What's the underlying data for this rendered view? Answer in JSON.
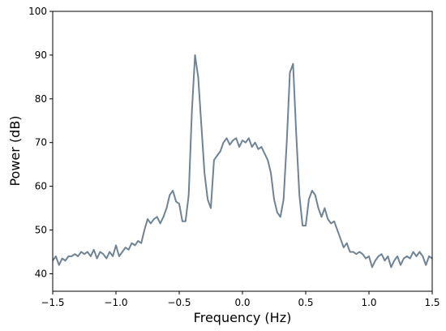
{
  "chart_data": {
    "type": "line",
    "xlabel": "Frequency (Hz)",
    "ylabel": "Power (dB)",
    "color": "#6f8397",
    "xlim": [
      -1.5,
      1.5
    ],
    "ylim": [
      36,
      100
    ],
    "xticks": [
      {
        "value": -1.5,
        "label": "−1.5"
      },
      {
        "value": -1,
        "label": "−1.0"
      },
      {
        "value": -0.5,
        "label": "−0.5"
      },
      {
        "value": 0,
        "label": "0.0"
      },
      0.5,
      {
        "value": 1,
        "label": "1.0"
      },
      1.5
    ],
    "yticks": [
      40,
      50,
      60,
      70,
      80,
      90,
      100
    ],
    "x": [
      -1.5,
      -1.475,
      -1.45,
      -1.425,
      -1.4,
      -1.375,
      -1.35,
      -1.325,
      -1.3,
      -1.275,
      -1.25,
      -1.225,
      -1.2,
      -1.175,
      -1.15,
      -1.125,
      -1.1,
      -1.075,
      -1.05,
      -1.025,
      -1.0,
      -0.975,
      -0.95,
      -0.925,
      -0.9,
      -0.875,
      -0.85,
      -0.825,
      -0.8,
      -0.775,
      -0.75,
      -0.725,
      -0.7,
      -0.675,
      -0.65,
      -0.625,
      -0.6,
      -0.575,
      -0.55,
      -0.525,
      -0.5,
      -0.475,
      -0.45,
      -0.425,
      -0.4,
      -0.375,
      -0.35,
      -0.325,
      -0.3,
      -0.275,
      -0.25,
      -0.225,
      -0.2,
      -0.175,
      -0.15,
      -0.125,
      -0.1,
      -0.075,
      -0.05,
      -0.025,
      0,
      0.025,
      0.05,
      0.075,
      0.1,
      0.125,
      0.15,
      0.175,
      0.2,
      0.225,
      0.25,
      0.275,
      0.3,
      0.325,
      0.35,
      0.375,
      0.4,
      0.425,
      0.45,
      0.475,
      0.5,
      0.525,
      0.55,
      0.575,
      0.6,
      0.625,
      0.65,
      0.675,
      0.7,
      0.725,
      0.75,
      0.775,
      0.8,
      0.825,
      0.85,
      0.875,
      0.9,
      0.925,
      0.95,
      0.975,
      1.0,
      1.025,
      1.05,
      1.075,
      1.1,
      1.125,
      1.15,
      1.175,
      1.2,
      1.225,
      1.25,
      1.275,
      1.3,
      1.325,
      1.35,
      1.375,
      1.4,
      1.425,
      1.45,
      1.475,
      1.5
    ],
    "values": [
      43,
      44,
      42,
      43.5,
      43,
      44,
      44,
      44.5,
      44,
      45,
      44.5,
      45,
      44,
      45.5,
      43.5,
      45,
      44.5,
      43.5,
      45,
      44,
      46.5,
      44,
      45,
      46,
      45.5,
      47,
      46.5,
      47.5,
      47,
      50,
      52.5,
      51.5,
      52.5,
      53,
      51.5,
      53,
      55,
      58,
      59,
      56.5,
      56,
      52,
      52,
      58,
      77,
      90,
      85,
      74,
      63,
      57,
      55,
      66,
      67,
      68,
      70,
      71,
      69.5,
      70.5,
      71,
      69,
      70.5,
      70,
      71,
      69,
      70,
      68.5,
      69,
      67.5,
      66,
      63,
      57,
      54,
      53,
      57,
      70,
      86,
      88,
      72,
      58,
      51,
      51,
      57,
      59,
      58,
      55,
      53,
      55,
      52.5,
      51.5,
      52,
      50,
      48,
      46,
      47,
      45,
      45,
      44.5,
      45,
      44.5,
      43.5,
      44,
      41.5,
      43,
      44,
      44.5,
      43,
      44,
      41.5,
      43,
      44,
      42,
      43.5,
      44,
      43.5,
      45,
      44,
      45,
      44,
      42,
      44,
      43.5
    ]
  }
}
